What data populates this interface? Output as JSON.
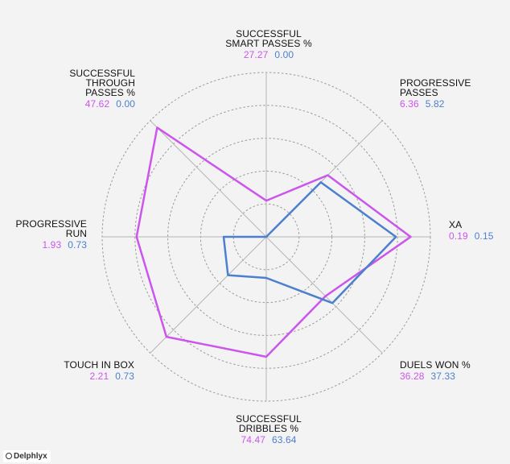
{
  "chart_data": {
    "type": "radar",
    "axes": [
      {
        "label": "SUCCESSFUL\nSMART PASSES %",
        "values": [
          "27.27",
          "0.00"
        ],
        "scaled": [
          0.22,
          0.0
        ]
      },
      {
        "label": "PROGRESSIVE\nPASSES",
        "values": [
          "6.36",
          "5.82"
        ],
        "scaled": [
          0.53,
          0.47
        ]
      },
      {
        "label": "XA",
        "values": [
          "0.19",
          "0.15"
        ],
        "scaled": [
          0.88,
          0.79
        ]
      },
      {
        "label": "DUELS WON %",
        "values": [
          "36.28",
          "37.33"
        ],
        "scaled": [
          0.51,
          0.57
        ]
      },
      {
        "label": "SUCCESSFUL\nDRIBBLES %",
        "values": [
          "74.47",
          "63.64"
        ],
        "scaled": [
          0.73,
          0.25
        ]
      },
      {
        "label": "TOUCH IN BOX",
        "values": [
          "2.21",
          "0.73"
        ],
        "scaled": [
          0.86,
          0.33
        ]
      },
      {
        "label": "PROGRESSIVE\nRUN",
        "values": [
          "1.93",
          "0.73"
        ],
        "scaled": [
          0.79,
          0.26
        ]
      },
      {
        "label": "SUCCESSFUL\nTHROUGH\nPASSES %",
        "values": [
          "47.62",
          "0.00"
        ],
        "scaled": [
          0.94,
          0.0
        ]
      }
    ],
    "series": [
      {
        "color": "#cc55ee"
      },
      {
        "color": "#4d7fcf"
      }
    ],
    "rings": 5,
    "range": [
      0,
      1
    ]
  },
  "brand": "Delphlyx"
}
